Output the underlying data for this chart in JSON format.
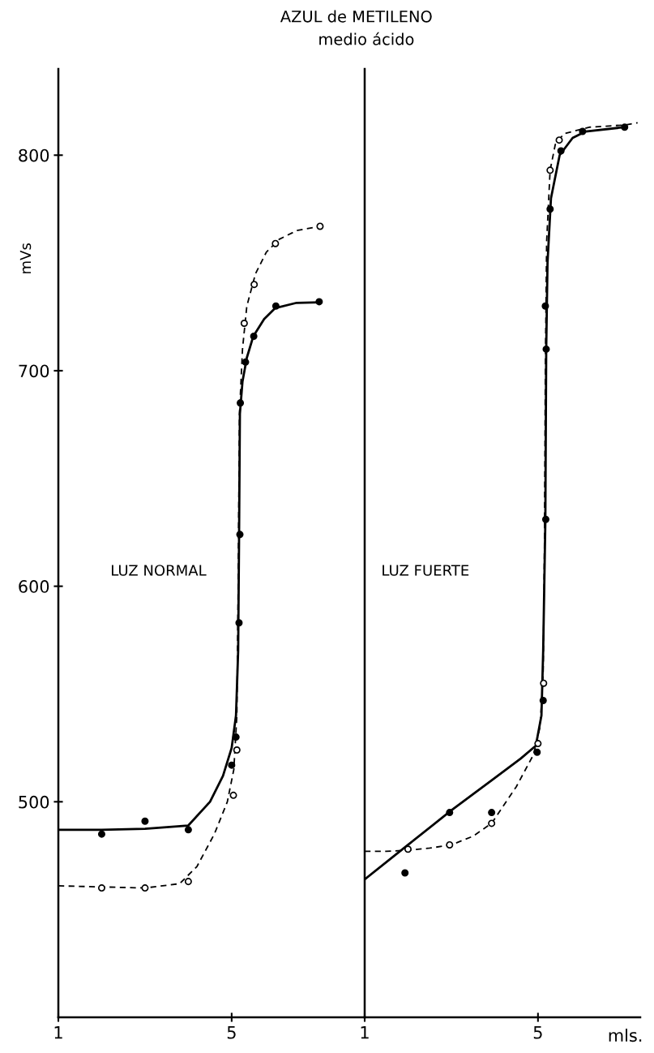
{
  "chart_data": [
    {
      "type": "scatter",
      "title": "AZUL de METILENO",
      "subtitle": "medio ácido",
      "ylabel": "mVs",
      "annotations": [
        "LUZ NORMAL"
      ],
      "xlim": [
        1,
        8.07
      ],
      "xticks": [
        1,
        5
      ],
      "ylim": [
        400,
        840
      ],
      "yticks": [
        500,
        600,
        700,
        800
      ],
      "grid": false,
      "legend": false,
      "series": [
        {
          "type": "line",
          "color": "#000000",
          "line_style": "solid",
          "marker": "none",
          "x": [
            1,
            2,
            3,
            4,
            4.5,
            4.8,
            5.0,
            5.1,
            5.15,
            5.17,
            5.19,
            5.25,
            5.35,
            5.5,
            5.75,
            6.0,
            6.5,
            7.02
          ],
          "values": [
            487,
            487,
            487.5,
            489,
            500,
            512,
            525,
            540,
            570,
            620,
            680,
            695,
            706,
            716,
            724,
            729,
            731.5,
            731.7
          ]
        },
        {
          "type": "line",
          "color": "#000000",
          "line_style": "dashed",
          "marker": "none",
          "x": [
            1,
            2,
            3,
            3.8,
            4.2,
            4.6,
            4.9,
            5.05,
            5.12,
            5.15,
            5.18,
            5.25,
            5.35,
            5.55,
            5.8,
            6.1,
            6.5,
            7.04
          ],
          "values": [
            461,
            460.5,
            460,
            462,
            470,
            485,
            500,
            515,
            540,
            600,
            680,
            710,
            730,
            745,
            755,
            761,
            765,
            767
          ]
        },
        {
          "color": "#000000",
          "marker": "circle",
          "x": [
            2.0,
            3.0,
            4.0,
            5.0,
            5.1,
            5.17,
            5.19,
            5.2,
            5.32,
            5.51,
            6.02,
            7.02
          ],
          "values": [
            485,
            491,
            487,
            517,
            530,
            583,
            624,
            685,
            704,
            716,
            730,
            732
          ]
        },
        {
          "color": "#ffffff",
          "marker": "circle",
          "x": [
            2.0,
            3.0,
            4.0,
            5.04,
            5.12,
            5.29,
            5.52,
            6.01,
            7.04
          ],
          "values": [
            460,
            460,
            463,
            503,
            524,
            722,
            740,
            759,
            767
          ]
        }
      ]
    },
    {
      "type": "scatter",
      "xlabel": "mls.",
      "annotations": [
        "LUZ FUERTE"
      ],
      "tick_labels": "x",
      "xlim": [
        1,
        7.36
      ],
      "xticks": [
        1,
        5
      ],
      "ylim": [
        400,
        840
      ],
      "yticks": [
        500,
        600,
        700,
        800
      ],
      "grid": false,
      "legend": false,
      "series": [
        {
          "type": "line",
          "color": "#000000",
          "line_style": "solid",
          "marker": "none",
          "x": [
            1,
            2,
            3,
            4,
            4.6,
            4.95,
            5.08,
            5.12,
            5.17,
            5.19,
            5.22,
            5.3,
            5.5,
            5.8,
            6.1,
            7.0
          ],
          "values": [
            464,
            480,
            496,
            511,
            520,
            526,
            540,
            570,
            630,
            710,
            750,
            780,
            800,
            808,
            811,
            813
          ]
        },
        {
          "type": "line",
          "color": "#000000",
          "line_style": "dashed",
          "marker": "none",
          "x": [
            1,
            1.5,
            2,
            2.5,
            3,
            3.5,
            3.93,
            4.5,
            4.9,
            5.05,
            5.12,
            5.15,
            5.17,
            5.2,
            5.28,
            5.4,
            5.6,
            6.2,
            7.0,
            7.3
          ],
          "values": [
            477,
            477,
            477.5,
            478.5,
            480,
            484,
            490,
            507,
            522,
            535,
            560,
            620,
            700,
            760,
            793,
            805,
            810,
            813,
            814,
            815
          ]
        },
        {
          "color": "#000000",
          "marker": "circle",
          "x": [
            1.93,
            2.96,
            3.93,
            4.98,
            5.12,
            5.18,
            5.19,
            5.17,
            5.28,
            5.53,
            6.03,
            7.0
          ],
          "values": [
            467,
            495,
            495,
            523,
            547,
            631,
            710,
            730,
            775,
            802,
            811,
            813
          ]
        },
        {
          "color": "#ffffff",
          "marker": "circle",
          "x": [
            2.0,
            2.96,
            3.93,
            5.0,
            5.13,
            5.28,
            5.49
          ],
          "values": [
            478,
            480,
            490,
            527,
            555,
            793,
            807
          ]
        }
      ]
    }
  ]
}
